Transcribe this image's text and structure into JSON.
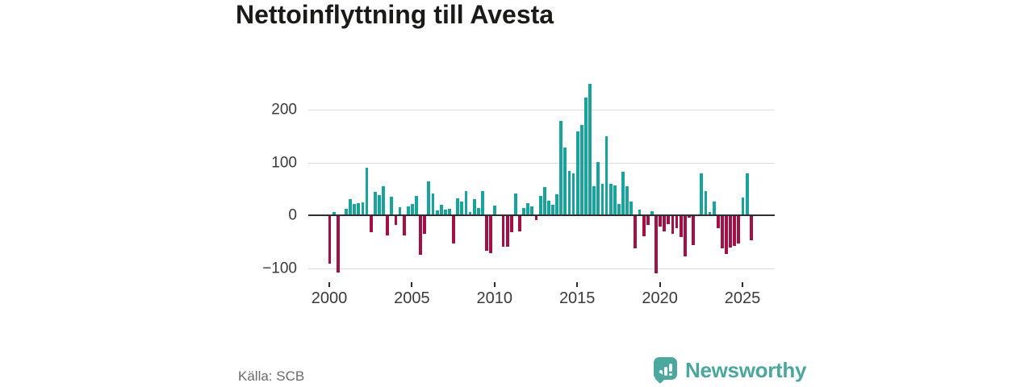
{
  "title": "Nettoinflyttning till Avesta",
  "footer": {
    "source": "Källa: SCB",
    "brand": "Newsworthy"
  },
  "colors": {
    "positive": "#18a49c",
    "negative": "#a31046",
    "brand": "#4ba69e",
    "axis_line": "#2e2e2e",
    "grid_line": "#dcdcdc",
    "tick_text": "#3a3a3a",
    "muted_text": "#6a6a6a",
    "title_text": "#1a1a18"
  },
  "chart_data": {
    "type": "bar",
    "title": "Nettoinflyttning till Avesta",
    "frequency": "quarterly",
    "start_period": "2000-Q1",
    "end_period": "2025-Q3",
    "values": [
      -89,
      6,
      -107,
      0,
      12,
      30,
      22,
      23,
      25,
      90,
      -30,
      45,
      38,
      55,
      -36,
      36,
      -16,
      15,
      -37,
      17,
      22,
      37,
      -73,
      -33,
      64,
      42,
      10,
      20,
      11,
      12,
      -52,
      33,
      26,
      46,
      6,
      31,
      14,
      46,
      -65,
      -70,
      19,
      0,
      -57,
      -57,
      -30,
      42,
      -29,
      14,
      23,
      17,
      -7,
      37,
      54,
      27,
      20,
      40,
      178,
      128,
      84,
      80,
      159,
      171,
      222,
      248,
      55,
      101,
      59,
      150,
      60,
      57,
      21,
      83,
      55,
      26,
      -61,
      11,
      -38,
      -16,
      8,
      -108,
      -20,
      -28,
      -15,
      -33,
      -23,
      -40,
      -76,
      -2,
      -54,
      2,
      80,
      46,
      6,
      26,
      -22,
      -60,
      -72,
      -59,
      -56,
      -51,
      34,
      80,
      -46
    ],
    "x_tick_years": [
      2000,
      2005,
      2010,
      2015,
      2020,
      2025
    ],
    "x_tick_labels": [
      "2000",
      "2005",
      "2010",
      "2015",
      "2020",
      "2025"
    ],
    "y_tick_values": [
      200,
      100,
      0,
      -100
    ],
    "y_tick_labels": [
      "200",
      "100",
      "0",
      "−100"
    ],
    "ylim": [
      -120,
      260
    ],
    "grid": true,
    "legend": false,
    "positive_color": "#18a49c",
    "negative_color": "#a31046"
  }
}
